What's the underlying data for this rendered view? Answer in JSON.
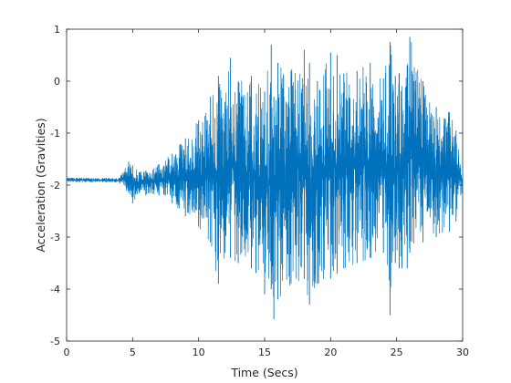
{
  "chart_data": {
    "type": "line",
    "title": "",
    "xlabel": "Time (Secs)",
    "ylabel": "Acceleration (Gravities)",
    "xlim": [
      0,
      30
    ],
    "ylim": [
      -5,
      1
    ],
    "xticks": [
      0,
      5,
      10,
      15,
      20,
      25,
      30
    ],
    "yticks": [
      -5,
      -4,
      -3,
      -2,
      -1,
      0,
      1
    ],
    "xtick_labels": [
      "0",
      "5",
      "10",
      "15",
      "20",
      "25",
      "30"
    ],
    "ytick_labels": [
      "-5",
      "-4",
      "-3",
      "-2",
      "-1",
      "0",
      "1"
    ],
    "grid": false,
    "legend": "none",
    "series": [
      {
        "color": "#0072BD",
        "x": [
          0,
          1,
          2,
          3,
          4,
          4.7,
          5,
          5.5,
          6,
          7,
          8,
          9,
          10,
          10.9,
          11.5,
          12,
          12.4,
          13,
          14,
          15,
          15.5,
          15.7,
          16,
          17,
          18,
          18.4,
          19,
          20,
          20.5,
          21,
          22,
          23,
          24,
          24.5,
          24.9,
          25.2,
          25.8,
          26,
          27,
          28,
          29,
          29.5,
          30
        ],
        "y_max": [
          -1.86,
          -1.86,
          -1.87,
          -1.86,
          -1.86,
          -1.55,
          -1.62,
          -1.75,
          -1.72,
          -1.6,
          -1.4,
          -1.1,
          -0.75,
          -0.3,
          0.1,
          -0.4,
          0.45,
          0.0,
          0.1,
          -0.2,
          0.7,
          -0.3,
          0.35,
          0.2,
          0.6,
          0.35,
          0.0,
          0.55,
          0.5,
          0.15,
          0.2,
          0.35,
          0.05,
          0.75,
          0.1,
          0.15,
          0.3,
          0.85,
          0.0,
          -0.5,
          -0.6,
          -0.95,
          -1.7
        ],
        "y_min": [
          -1.94,
          -1.94,
          -1.94,
          -1.94,
          -1.95,
          -2.15,
          -2.35,
          -2.15,
          -2.2,
          -2.2,
          -2.35,
          -2.6,
          -2.8,
          -3.1,
          -3.9,
          -3.3,
          -3.4,
          -3.5,
          -3.6,
          -4.1,
          -4.0,
          -4.58,
          -4.2,
          -3.9,
          -3.8,
          -4.3,
          -3.9,
          -3.8,
          -3.7,
          -3.6,
          -3.5,
          -3.4,
          -3.3,
          -4.5,
          -3.5,
          -3.6,
          -3.6,
          -3.3,
          -3.1,
          -3.0,
          -2.9,
          -2.7,
          -2.1
        ]
      }
    ]
  }
}
